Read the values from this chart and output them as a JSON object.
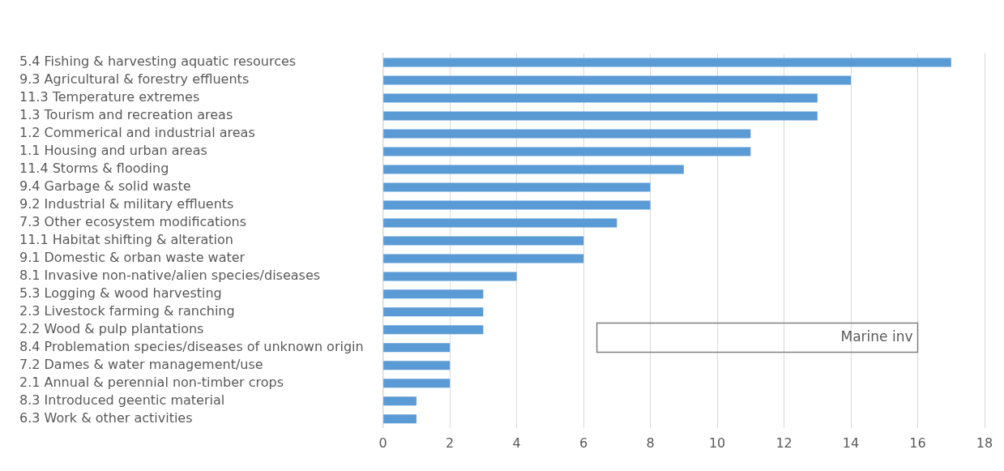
{
  "chart_data": {
    "type": "bar",
    "orientation": "horizontal",
    "categories": [
      "5.4 Fishing & harvesting aquatic resources",
      "9.3 Agricultural & forestry effluents",
      "11.3 Temperature extremes",
      "1.3 Tourism and recreation areas",
      "1.2 Commerical and industrial areas",
      "1.1 Housing and urban areas",
      "11.4 Storms & flooding",
      "9.4 Garbage & solid waste",
      "9.2 Industrial & military effluents",
      "7.3 Other ecosystem modifications",
      "11.1 Habitat shifting & alteration",
      "9.1 Domestic & orban waste water",
      "8.1 Invasive non-native/alien species/diseases",
      "5.3 Logging & wood harvesting",
      "2.3 Livestock farming & ranching",
      "2.2 Wood & pulp plantations",
      "8.4 Problemation species/diseases of unknown origin",
      "7.2 Dames & water management/use",
      "2.1 Annual & perennial non-timber crops",
      "8.3 Introduced geentic material",
      "6.3 Work & other activities"
    ],
    "values": [
      17,
      14,
      13,
      13,
      11,
      11,
      9,
      8,
      8,
      7,
      6,
      6,
      4,
      3,
      3,
      3,
      2,
      2,
      2,
      1,
      1
    ],
    "color": "#5b9bd5",
    "xlim": [
      0,
      18
    ],
    "xticks": [
      0,
      2,
      4,
      6,
      8,
      10,
      12,
      14,
      16,
      18
    ],
    "grid": "x",
    "legend": false,
    "annotations": [
      "Marine inv"
    ]
  }
}
